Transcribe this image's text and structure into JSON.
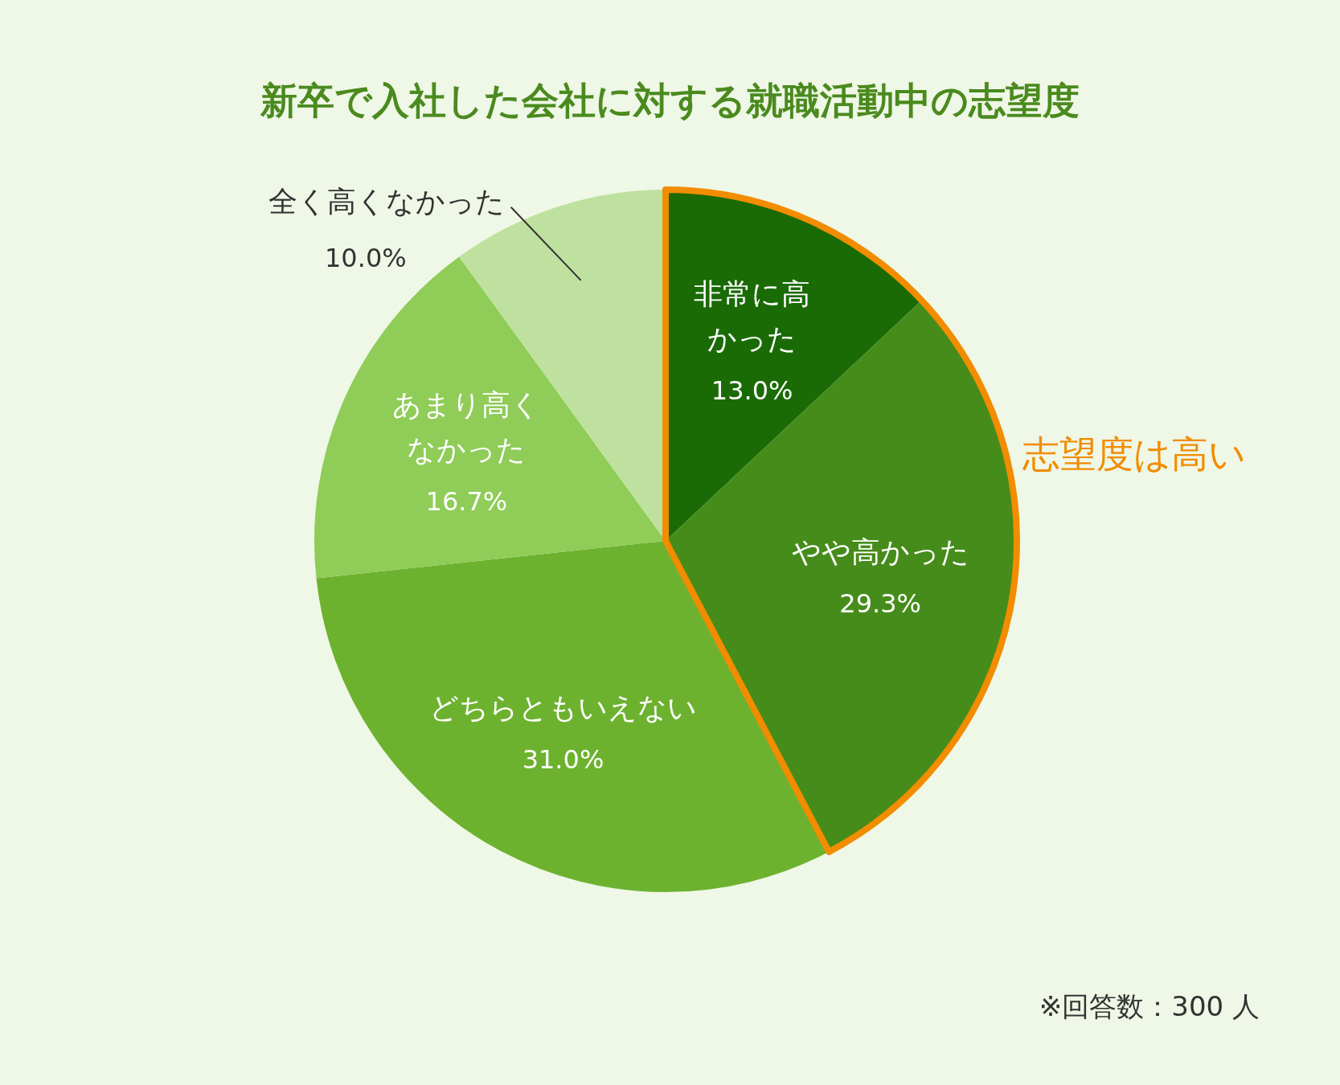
{
  "chart_data": {
    "type": "pie",
    "title": "新卒で入社した会社に対する就職活動中の志望度",
    "categories": [
      "非常に高かった",
      "やや高かった",
      "どちらともいえない",
      "あまり高くなかった",
      "全く高くなかった"
    ],
    "values": [
      13.0,
      29.3,
      31.0,
      16.7,
      10.0
    ],
    "colors": [
      "#1a6b06",
      "#468c1a",
      "#6db22f",
      "#8fcc58",
      "#bfe19f"
    ],
    "value_labels": [
      "13.0%",
      "29.3%",
      "31.0%",
      "16.7%",
      "10.0%"
    ],
    "annotations": [
      "志望度は高い",
      "※回答数：300 人"
    ],
    "legend": false
  }
}
